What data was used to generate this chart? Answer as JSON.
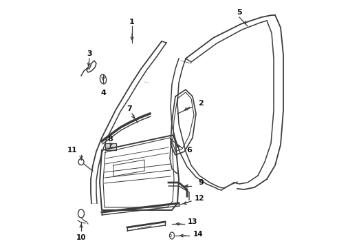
{
  "background_color": "#ffffff",
  "line_color": "#3a3a3a",
  "text_color": "#111111",
  "figsize": [
    4.9,
    3.6
  ],
  "dpi": 100,
  "xlim": [
    0,
    490
  ],
  "ylim": [
    0,
    360
  ]
}
